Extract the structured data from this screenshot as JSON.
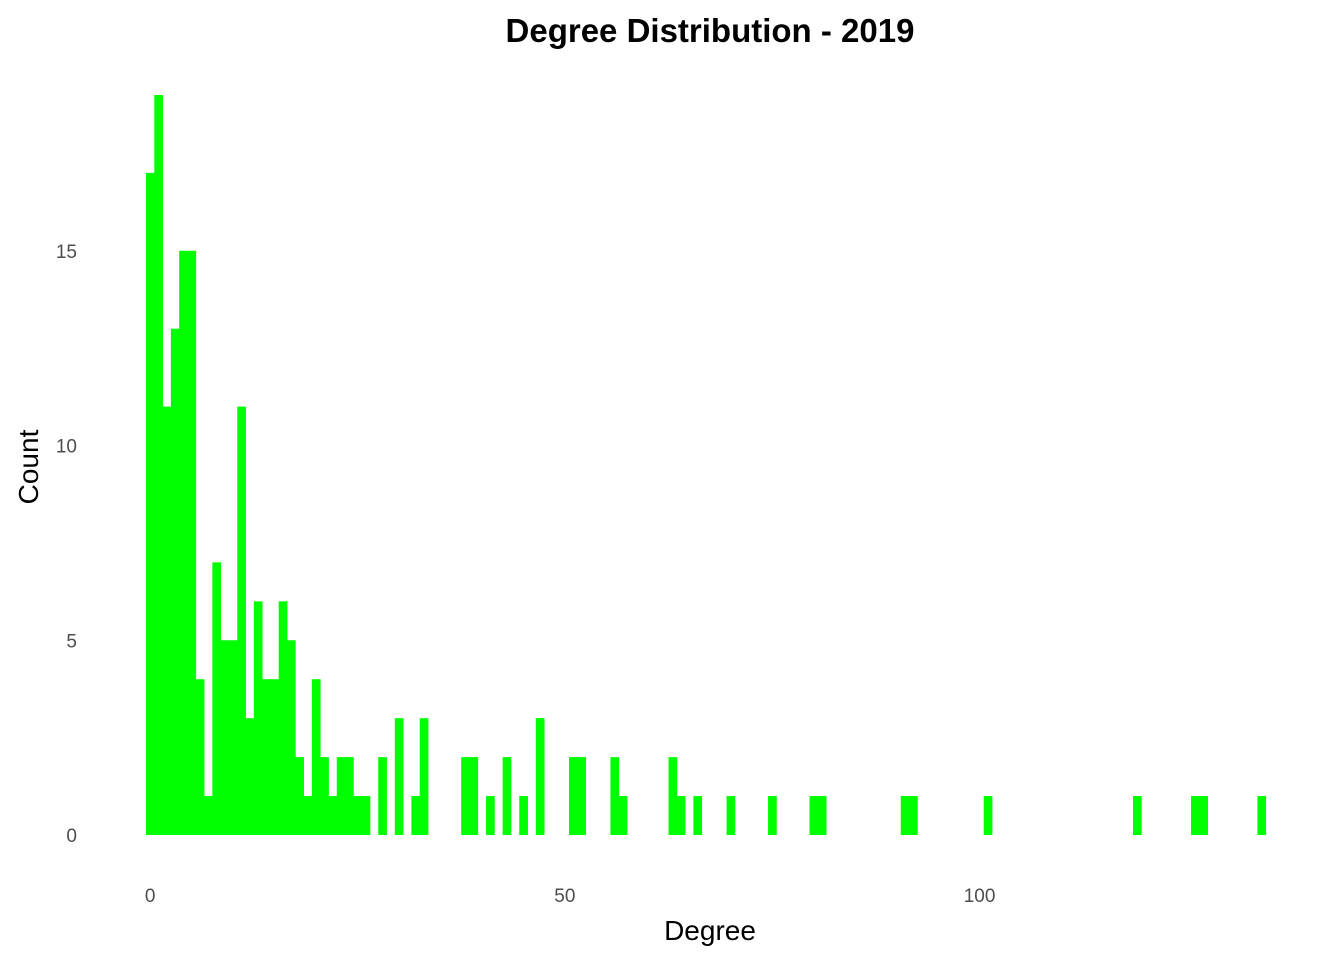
{
  "colors": {
    "bar": "#00ff00",
    "background": "#ffffff",
    "tick_text": "#4d4d4d",
    "label_text": "#000000"
  },
  "chart_data": {
    "type": "bar",
    "title": "Degree Distribution - 2019",
    "xlabel": "Degree",
    "ylabel": "Count",
    "xlim": [
      -0.5,
      135.5
    ],
    "ylim": [
      0,
      19
    ],
    "x_ticks": [
      0,
      50,
      100
    ],
    "y_ticks": [
      0,
      5,
      10,
      15
    ],
    "grid": false,
    "bin_width": 1,
    "bins": [
      {
        "x": 0,
        "count": 17
      },
      {
        "x": 1,
        "count": 19
      },
      {
        "x": 2,
        "count": 11
      },
      {
        "x": 3,
        "count": 13
      },
      {
        "x": 4,
        "count": 15
      },
      {
        "x": 5,
        "count": 15
      },
      {
        "x": 6,
        "count": 4
      },
      {
        "x": 7,
        "count": 1
      },
      {
        "x": 8,
        "count": 7
      },
      {
        "x": 9,
        "count": 5
      },
      {
        "x": 10,
        "count": 5
      },
      {
        "x": 11,
        "count": 11
      },
      {
        "x": 12,
        "count": 3
      },
      {
        "x": 13,
        "count": 6
      },
      {
        "x": 14,
        "count": 4
      },
      {
        "x": 15,
        "count": 4
      },
      {
        "x": 16,
        "count": 6
      },
      {
        "x": 17,
        "count": 5
      },
      {
        "x": 18,
        "count": 2
      },
      {
        "x": 19,
        "count": 1
      },
      {
        "x": 20,
        "count": 4
      },
      {
        "x": 21,
        "count": 2
      },
      {
        "x": 22,
        "count": 1
      },
      {
        "x": 23,
        "count": 2
      },
      {
        "x": 24,
        "count": 2
      },
      {
        "x": 25,
        "count": 1
      },
      {
        "x": 26,
        "count": 1
      },
      {
        "x": 28,
        "count": 2
      },
      {
        "x": 30,
        "count": 3
      },
      {
        "x": 32,
        "count": 1
      },
      {
        "x": 33,
        "count": 3
      },
      {
        "x": 38,
        "count": 2
      },
      {
        "x": 39,
        "count": 2
      },
      {
        "x": 41,
        "count": 1
      },
      {
        "x": 43,
        "count": 2
      },
      {
        "x": 45,
        "count": 1
      },
      {
        "x": 47,
        "count": 3
      },
      {
        "x": 51,
        "count": 2
      },
      {
        "x": 52,
        "count": 2
      },
      {
        "x": 56,
        "count": 2
      },
      {
        "x": 57,
        "count": 1
      },
      {
        "x": 63,
        "count": 2
      },
      {
        "x": 64,
        "count": 1
      },
      {
        "x": 66,
        "count": 1
      },
      {
        "x": 70,
        "count": 1
      },
      {
        "x": 75,
        "count": 1
      },
      {
        "x": 80,
        "count": 1
      },
      {
        "x": 81,
        "count": 1
      },
      {
        "x": 91,
        "count": 1
      },
      {
        "x": 92,
        "count": 1
      },
      {
        "x": 101,
        "count": 1
      },
      {
        "x": 119,
        "count": 1
      },
      {
        "x": 126,
        "count": 1
      },
      {
        "x": 127,
        "count": 1
      },
      {
        "x": 134,
        "count": 1
      }
    ]
  }
}
